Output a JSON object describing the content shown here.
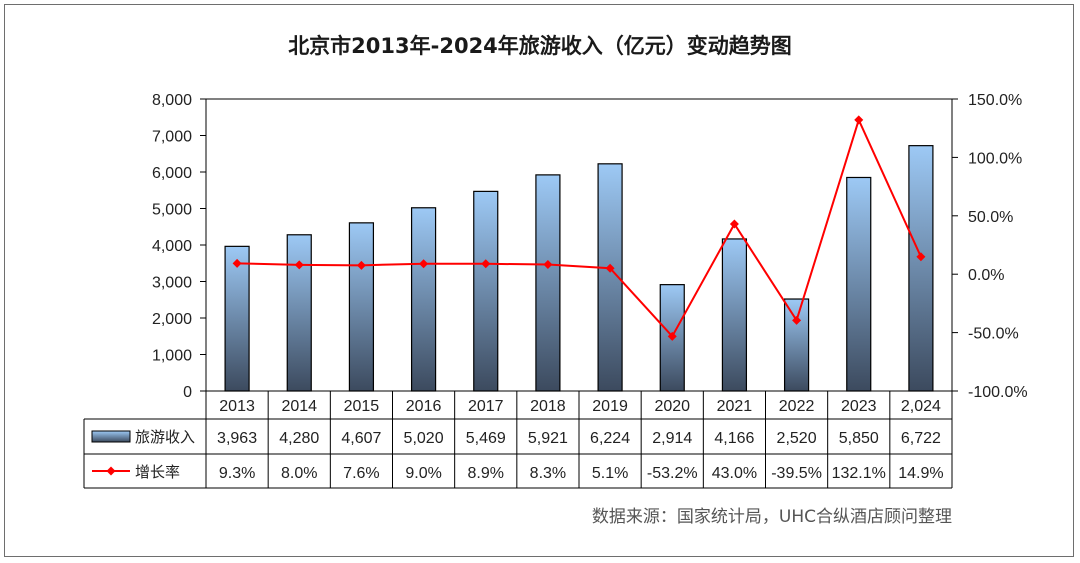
{
  "title": "北京市2013年-2024年旅游收入（亿元）变动趋势图",
  "source": "数据来源：国家统计局，UHC合纵酒店顾问整理",
  "colors": {
    "line": "#ff0000",
    "bar_top": "#9dc9f5",
    "bar_bottom": "#3c4a5e",
    "grid": "#000000"
  },
  "chart_data": {
    "type": "bar",
    "categories": [
      "2013",
      "2014",
      "2015",
      "2016",
      "2017",
      "2018",
      "2019",
      "2020",
      "2021",
      "2022",
      "2023",
      "2,024"
    ],
    "series": [
      {
        "name": "旅游收入",
        "type": "bar",
        "axis": "left",
        "values": [
          3963,
          4280,
          4607,
          5020,
          5469,
          5921,
          6224,
          2914,
          4166,
          2520,
          5850,
          6722
        ],
        "labels": [
          "3,963",
          "4,280",
          "4,607",
          "5,020",
          "5,469",
          "5,921",
          "6,224",
          "2,914",
          "4,166",
          "2,520",
          "5,850",
          "6,722"
        ]
      },
      {
        "name": "增长率",
        "type": "line",
        "axis": "right",
        "values": [
          9.3,
          8.0,
          7.6,
          9.0,
          8.9,
          8.3,
          5.1,
          -53.2,
          43.0,
          -39.5,
          132.1,
          14.9
        ],
        "labels": [
          "9.3%",
          "8.0%",
          "7.6%",
          "9.0%",
          "8.9%",
          "8.3%",
          "5.1%",
          "-53.2%",
          "43.0%",
          "-39.5%",
          "132.1%",
          "14.9%"
        ]
      }
    ],
    "y_left": {
      "min": 0,
      "max": 8000,
      "ticks": [
        "0",
        "1,000",
        "2,000",
        "3,000",
        "4,000",
        "5,000",
        "6,000",
        "7,000",
        "8,000"
      ]
    },
    "y_right": {
      "min": -100,
      "max": 150,
      "ticks": [
        "-100.0%",
        "-50.0%",
        "0.0%",
        "50.0%",
        "100.0%",
        "150.0%"
      ]
    },
    "grid": false,
    "legend": "data-table"
  }
}
